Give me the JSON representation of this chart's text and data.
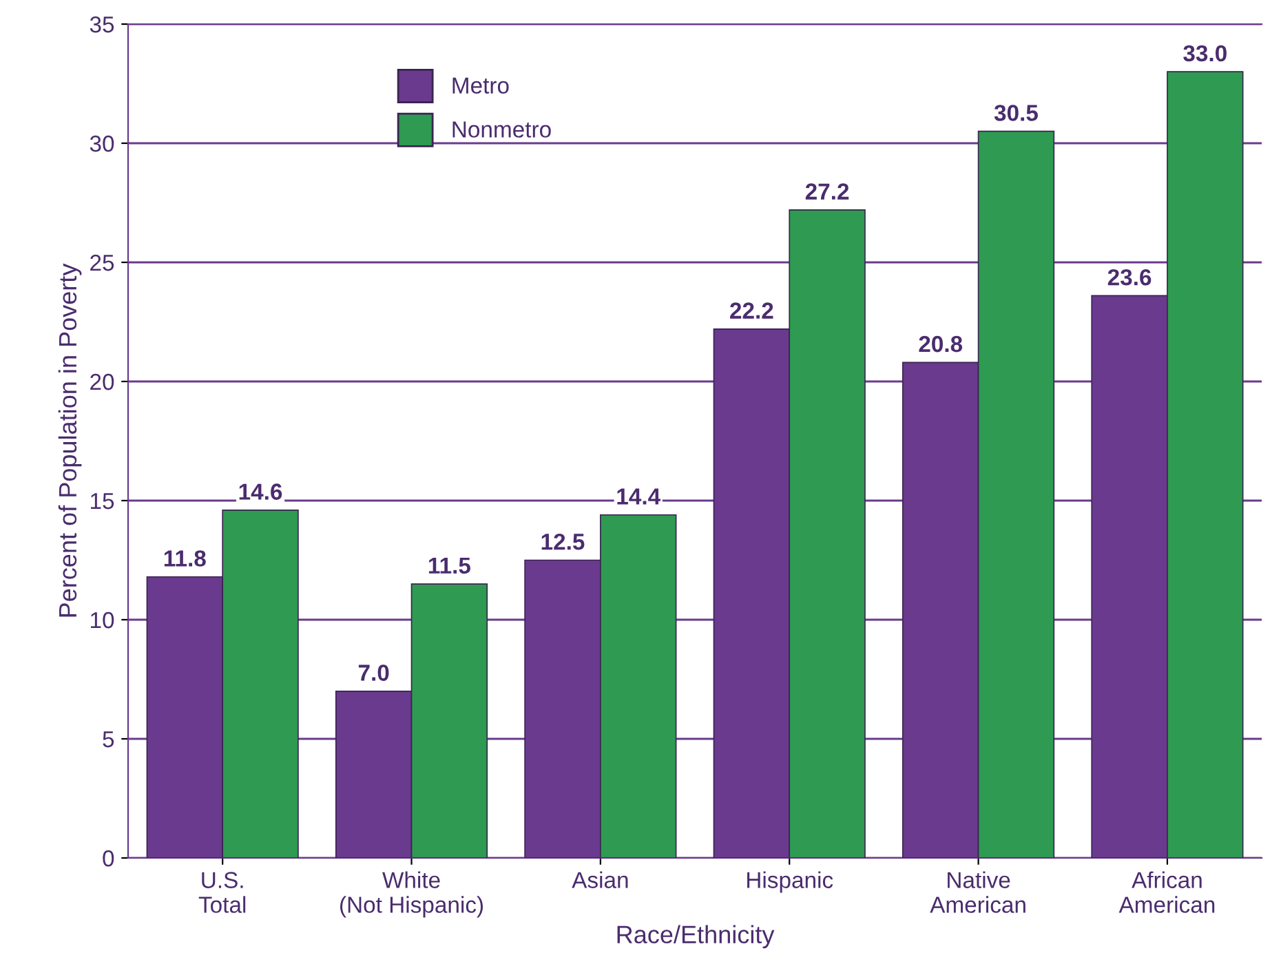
{
  "chart_data": {
    "type": "bar",
    "xlabel": "Race/Ethnicity",
    "ylabel": "Percent of Population in Poverty",
    "categories": [
      "U.S.\nTotal",
      "White\n(Not Hispanic)",
      "Asian",
      "Hispanic",
      "Native\nAmerican",
      "African\nAmerican"
    ],
    "series": [
      {
        "name": "Metro",
        "color": "#6a3a8e",
        "values": [
          11.8,
          7.0,
          12.5,
          22.2,
          20.8,
          23.6
        ],
        "value_labels": [
          "11.8",
          "7.0",
          "12.5",
          "22.2",
          "20.8",
          "23.6"
        ]
      },
      {
        "name": "Nonmetro",
        "color": "#2e9a52",
        "values": [
          14.6,
          11.5,
          14.4,
          27.2,
          30.5,
          33.0
        ],
        "value_labels": [
          "14.6",
          "11.5",
          "14.4",
          "27.2",
          "30.5",
          "33.0"
        ]
      }
    ],
    "ylim": [
      0,
      35
    ],
    "yticks": [
      0,
      5,
      10,
      15,
      20,
      25,
      30,
      35
    ],
    "grid": "y",
    "legend": "top left"
  }
}
